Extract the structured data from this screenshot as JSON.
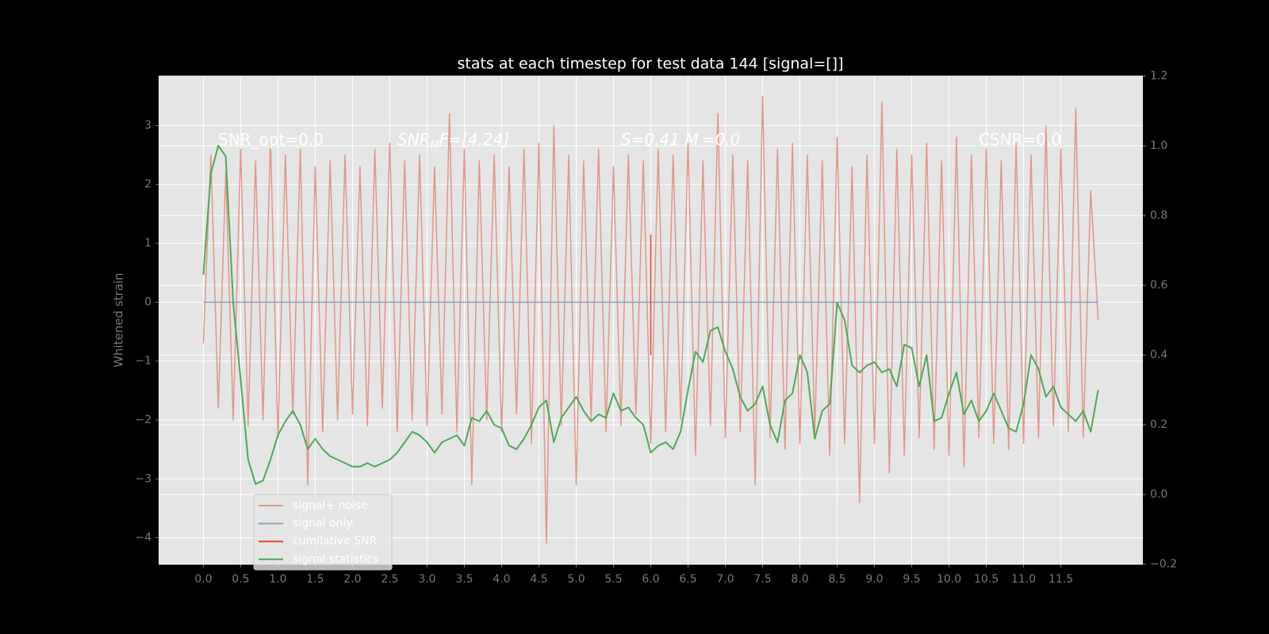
{
  "chart_data": {
    "type": "line",
    "title": "stats at each timestep for test data 144 [signal=[]]",
    "ylabel": "Whitened strain",
    "annotations": [
      {
        "text": "SNR_opt=0.0",
        "italic": false
      },
      {
        "text": "SNR",
        "sub": "M",
        "tail": "F=[4.24]",
        "italic": true
      },
      {
        "text": "S=0.41   M",
        "sub": ".",
        "tail": "=0.0",
        "italic": true
      },
      {
        "text": "CSNR=0.0",
        "italic": false
      }
    ],
    "x": [
      0.0,
      0.1,
      0.2,
      0.3,
      0.4,
      0.5,
      0.6,
      0.7,
      0.8,
      0.9,
      1.0,
      1.1,
      1.2,
      1.3,
      1.4,
      1.5,
      1.6,
      1.7,
      1.8,
      1.9,
      2.0,
      2.1,
      2.2,
      2.3,
      2.4,
      2.5,
      2.6,
      2.7,
      2.8,
      2.9,
      3.0,
      3.1,
      3.2,
      3.3,
      3.4,
      3.5,
      3.6,
      3.7,
      3.8,
      3.9,
      4.0,
      4.1,
      4.2,
      4.3,
      4.4,
      4.5,
      4.6,
      4.7,
      4.8,
      4.9,
      5.0,
      5.1,
      5.2,
      5.3,
      5.4,
      5.5,
      5.6,
      5.7,
      5.8,
      5.9,
      6.0,
      6.1,
      6.2,
      6.3,
      6.4,
      6.5,
      6.6,
      6.7,
      6.8,
      6.9,
      7.0,
      7.1,
      7.2,
      7.3,
      7.4,
      7.5,
      7.6,
      7.7,
      7.8,
      7.9,
      8.0,
      8.1,
      8.2,
      8.3,
      8.4,
      8.5,
      8.6,
      8.7,
      8.8,
      8.9,
      9.0,
      9.1,
      9.2,
      9.3,
      9.4,
      9.5,
      9.6,
      9.7,
      9.8,
      9.9,
      10.0,
      10.1,
      10.2,
      10.3,
      10.4,
      10.5,
      10.6,
      10.7,
      10.8,
      10.9,
      11.0,
      11.1,
      11.2,
      11.3,
      11.4,
      11.5,
      11.6,
      11.7,
      11.8,
      11.9,
      12.0
    ],
    "series": [
      {
        "name": "signal+ noise",
        "color": "#e3968a",
        "values": [
          -0.7,
          2.5,
          -1.8,
          2.2,
          -2.0,
          2.6,
          -2.1,
          2.4,
          -2.0,
          2.8,
          -2.3,
          2.5,
          -1.9,
          2.6,
          -3.1,
          2.3,
          -2.2,
          2.4,
          -2.0,
          2.5,
          -1.9,
          2.3,
          -2.1,
          2.6,
          -1.8,
          2.7,
          -2.2,
          2.4,
          -2.0,
          2.5,
          -2.1,
          2.3,
          -1.9,
          3.2,
          -2.2,
          2.6,
          -3.1,
          2.4,
          -2.0,
          2.5,
          -2.2,
          2.3,
          -1.9,
          2.6,
          -2.4,
          2.7,
          -4.1,
          3.0,
          -2.1,
          2.5,
          -3.1,
          2.4,
          -2.0,
          2.6,
          -2.2,
          2.3,
          -2.1,
          2.5,
          -1.9,
          2.4,
          -2.4,
          2.6,
          -2.2,
          2.5,
          -2.0,
          2.7,
          -2.6,
          2.4,
          -2.1,
          3.2,
          -2.3,
          2.5,
          -2.2,
          2.4,
          -3.1,
          3.5,
          -2.3,
          2.6,
          -2.5,
          2.7,
          -2.4,
          2.5,
          -2.2,
          2.4,
          -2.6,
          2.8,
          -2.4,
          2.3,
          -3.4,
          2.5,
          -2.4,
          3.4,
          -2.9,
          2.6,
          -2.6,
          2.5,
          -2.3,
          2.7,
          -2.5,
          2.4,
          -2.6,
          2.8,
          -2.8,
          2.5,
          -2.3,
          2.6,
          -2.4,
          2.4,
          -2.5,
          2.7,
          -2.4,
          2.5,
          -2.3,
          3.0,
          -2.1,
          2.6,
          -2.2,
          3.3,
          -2.3,
          1.9,
          -0.3
        ]
      },
      {
        "name": "signal only",
        "color": "#8aa4bd",
        "x": [
          0.0,
          12.0
        ],
        "values": [
          0,
          0
        ]
      },
      {
        "name": "cumilative SNR",
        "color": "#e24a33",
        "x": [
          6.0,
          6.0
        ],
        "values": [
          1.15,
          -0.9
        ]
      },
      {
        "name": "signal statistics",
        "color": "#4caa58",
        "axis": "y2",
        "values": [
          0.63,
          0.92,
          1.0,
          0.97,
          0.55,
          0.33,
          0.1,
          0.03,
          0.04,
          0.1,
          0.17,
          0.21,
          0.24,
          0.2,
          0.13,
          0.16,
          0.13,
          0.11,
          0.1,
          0.09,
          0.08,
          0.08,
          0.09,
          0.08,
          0.09,
          0.1,
          0.12,
          0.15,
          0.18,
          0.17,
          0.15,
          0.12,
          0.15,
          0.16,
          0.17,
          0.14,
          0.22,
          0.21,
          0.24,
          0.2,
          0.19,
          0.14,
          0.13,
          0.16,
          0.2,
          0.25,
          0.27,
          0.15,
          0.22,
          0.25,
          0.28,
          0.24,
          0.21,
          0.23,
          0.22,
          0.29,
          0.24,
          0.25,
          0.22,
          0.2,
          0.12,
          0.14,
          0.15,
          0.13,
          0.18,
          0.3,
          0.41,
          0.38,
          0.47,
          0.48,
          0.41,
          0.36,
          0.28,
          0.24,
          0.26,
          0.31,
          0.2,
          0.15,
          0.27,
          0.29,
          0.4,
          0.35,
          0.16,
          0.24,
          0.26,
          0.55,
          0.5,
          0.37,
          0.35,
          0.37,
          0.38,
          0.35,
          0.36,
          0.31,
          0.43,
          0.42,
          0.31,
          0.4,
          0.21,
          0.22,
          0.29,
          0.35,
          0.23,
          0.27,
          0.21,
          0.24,
          0.29,
          0.24,
          0.19,
          0.18,
          0.26,
          0.4,
          0.36,
          0.28,
          0.31,
          0.25,
          0.23,
          0.21,
          0.24,
          0.18,
          0.3
        ]
      }
    ],
    "xlim": [
      -0.6,
      12.6
    ],
    "ylim": [
      -4.45,
      3.84
    ],
    "y2lim": [
      -0.2,
      1.2
    ],
    "xticks": [
      {
        "value": 0,
        "label": "0.0"
      },
      0.5,
      {
        "value": 1,
        "label": "1.0"
      },
      1.5,
      {
        "value": 2,
        "label": "2.0"
      },
      2.5,
      {
        "value": 3,
        "label": "3.0"
      },
      3.5,
      {
        "value": 4,
        "label": "4.0"
      },
      4.5,
      {
        "value": 5,
        "label": "5.0"
      },
      5.5,
      {
        "value": 6,
        "label": "6.0"
      },
      6.5,
      {
        "value": 7,
        "label": "7.0"
      },
      7.5,
      {
        "value": 8,
        "label": "8.0"
      },
      8.5,
      {
        "value": 9,
        "label": "9.0"
      },
      9.5,
      {
        "value": 10,
        "label": "10.0"
      },
      10.5,
      {
        "value": 11,
        "label": "11.0"
      },
      11.5
    ],
    "yticks": [
      {
        "value": -4,
        "label": "−4"
      },
      {
        "value": -3,
        "label": "−3"
      },
      {
        "value": -2,
        "label": "−2"
      },
      {
        "value": -1,
        "label": "−1"
      },
      0,
      1,
      2,
      3
    ],
    "y2ticks": [
      {
        "value": -0.2,
        "label": "−0.2"
      },
      {
        "value": 0,
        "label": "0.0"
      },
      0.2,
      0.4,
      0.6,
      0.8,
      {
        "value": 1,
        "label": "1.0"
      },
      1.2
    ],
    "grid": true,
    "legend": "lower left"
  }
}
